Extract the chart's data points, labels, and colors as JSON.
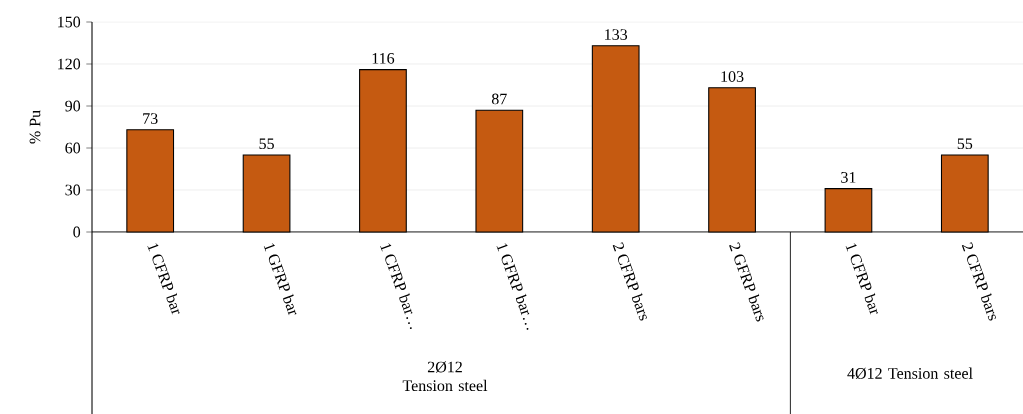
{
  "chart_data": {
    "type": "bar",
    "ylabel": "% Pu",
    "categories": [
      "1 CFRP bar",
      "1 GFRP bar",
      "1 CFRP bar…",
      "1 GFRP bar…",
      "2 CFRP bars",
      "2 GFRP bars",
      "1 CFRP bar",
      "2 CFRP bars"
    ],
    "values": [
      73,
      55,
      116,
      87,
      133,
      103,
      31,
      55
    ],
    "color": "#c55a11",
    "ylim": [
      0,
      150
    ],
    "yticks": [
      0,
      30,
      60,
      90,
      120,
      150
    ],
    "grid": "y",
    "data_labels": true,
    "annotations": [
      "2Ø12 Tension steel",
      "4Ø12 Tension steel"
    ]
  }
}
